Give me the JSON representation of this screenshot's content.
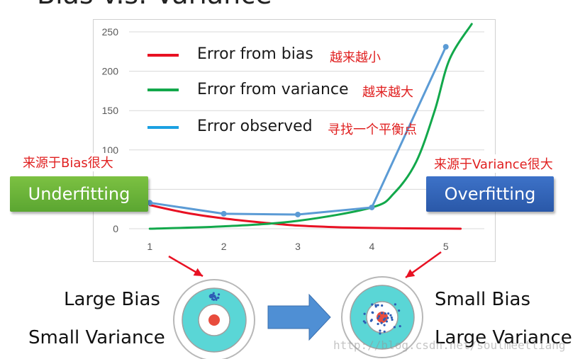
{
  "title": "Bias v.s. Variance",
  "chart_data": {
    "type": "line",
    "x": [
      1,
      2,
      3,
      4,
      5
    ],
    "xlim": [
      0.72,
      5.52
    ],
    "ylim": [
      0,
      250
    ],
    "yticks": [
      0,
      50,
      100,
      150,
      200,
      250
    ],
    "xticks": [
      1,
      2,
      3,
      4,
      5
    ],
    "grid": true,
    "legend_position": "top-left",
    "series": [
      {
        "name": "Error from bias",
        "note": "越来越小",
        "color": "#e81123",
        "points": [
          [
            1,
            30
          ],
          [
            1.5,
            20
          ],
          [
            2,
            13
          ],
          [
            2.5,
            8
          ],
          [
            3,
            4
          ],
          [
            3.5,
            2
          ],
          [
            4,
            1
          ],
          [
            4.5,
            0.5
          ],
          [
            5.2,
            0
          ]
        ]
      },
      {
        "name": "Error from variance",
        "note": "越来越大",
        "color": "#12a84b",
        "points": [
          [
            1,
            0
          ],
          [
            2,
            3
          ],
          [
            3,
            10
          ],
          [
            4,
            27
          ],
          [
            4.3,
            45
          ],
          [
            4.6,
            85
          ],
          [
            4.85,
            150
          ],
          [
            5.05,
            215
          ],
          [
            5.35,
            260
          ]
        ]
      },
      {
        "name": "Error observed",
        "note": "寻找一个平衡点",
        "color": "#5b9bd5",
        "legend_color": "#1ba1e2",
        "points": [
          [
            1,
            33
          ],
          [
            2,
            19
          ],
          [
            3,
            18
          ],
          [
            4,
            27
          ],
          [
            5,
            231
          ]
        ]
      }
    ]
  },
  "annotations": {
    "bias_source": "来源于Bias很大",
    "variance_source": "来源于Variance很大"
  },
  "badges": {
    "underfitting": "Underfitting",
    "overfitting": "Overfitting"
  },
  "targets": {
    "left_title": "Large Bias",
    "left_subtitle": "Small Variance",
    "right_title": "Small Bias",
    "right_subtitle": "Large Variance"
  },
  "colors": {
    "target_ring": "#5ad6d6",
    "target_center": "#e84c3d",
    "target_dots": "#2e5db5",
    "arrow_fill": "#4f8fd4",
    "pointer_arrow": "#e81123"
  },
  "watermark": "http://blog.csdn.net/soulmeetliang"
}
